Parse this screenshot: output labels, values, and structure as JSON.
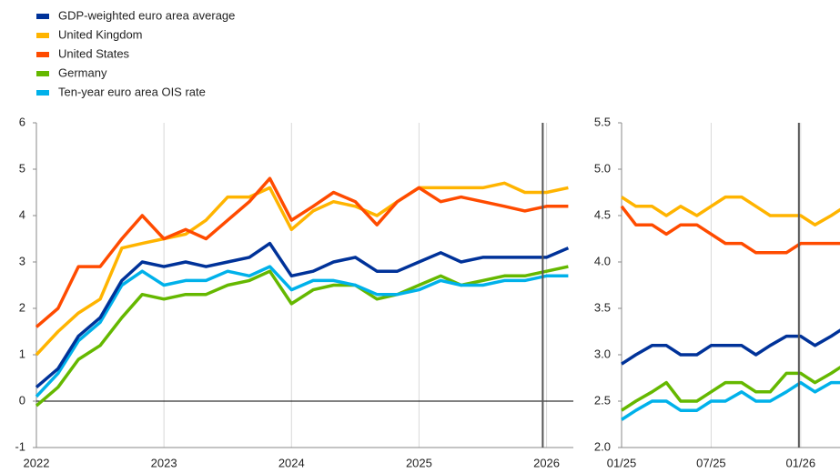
{
  "chart_data": [
    {
      "type": "line",
      "x": [
        2022,
        2022.17,
        2022.33,
        2022.5,
        2022.67,
        2022.83,
        2023,
        2023.17,
        2023.33,
        2023.5,
        2023.67,
        2023.83,
        2024,
        2024.17,
        2024.33,
        2024.5,
        2024.67,
        2024.83,
        2025,
        2025.17,
        2025.33,
        2025.5,
        2025.67,
        2025.83,
        2026,
        2026.17
      ],
      "series": [
        {
          "name": "GDP-weighted euro area average",
          "color": "#003299",
          "values": [
            0.3,
            0.7,
            1.4,
            1.8,
            2.6,
            3.0,
            2.9,
            3.0,
            2.9,
            3.0,
            3.1,
            3.4,
            2.7,
            2.8,
            3.0,
            3.1,
            2.8,
            2.8,
            3.0,
            3.2,
            3.0,
            3.1,
            3.1,
            3.1,
            3.1,
            3.3
          ]
        },
        {
          "name": "United Kingdom",
          "color": "#ffb400",
          "values": [
            1.0,
            1.5,
            1.9,
            2.2,
            3.3,
            3.4,
            3.5,
            3.6,
            3.9,
            4.4,
            4.4,
            4.6,
            3.7,
            4.1,
            4.3,
            4.2,
            4.0,
            4.3,
            4.6,
            4.6,
            4.6,
            4.6,
            4.7,
            4.5,
            4.5,
            4.6
          ]
        },
        {
          "name": "United States",
          "color": "#ff4b00",
          "values": [
            1.6,
            2.0,
            2.9,
            2.9,
            3.5,
            4.0,
            3.5,
            3.7,
            3.5,
            3.9,
            4.3,
            4.8,
            3.9,
            4.2,
            4.5,
            4.3,
            3.8,
            4.3,
            4.6,
            4.3,
            4.4,
            4.3,
            4.2,
            4.1,
            4.2,
            4.2
          ]
        },
        {
          "name": "Germany",
          "color": "#65b800",
          "values": [
            -0.1,
            0.3,
            0.9,
            1.2,
            1.8,
            2.3,
            2.2,
            2.3,
            2.3,
            2.5,
            2.6,
            2.8,
            2.1,
            2.4,
            2.5,
            2.5,
            2.2,
            2.3,
            2.5,
            2.7,
            2.5,
            2.6,
            2.7,
            2.7,
            2.8,
            2.9
          ]
        },
        {
          "name": "Ten-year euro area OIS rate",
          "color": "#00b1ea",
          "values": [
            0.1,
            0.6,
            1.3,
            1.7,
            2.5,
            2.8,
            2.5,
            2.6,
            2.6,
            2.8,
            2.7,
            2.9,
            2.4,
            2.6,
            2.6,
            2.5,
            2.3,
            2.3,
            2.4,
            2.6,
            2.5,
            2.5,
            2.6,
            2.6,
            2.7,
            2.7
          ]
        }
      ],
      "xlim": [
        2022,
        2026.21
      ],
      "xticks": [
        2022,
        2023,
        2024,
        2025,
        2026
      ],
      "ylim": [
        -1,
        6
      ],
      "yticks": [
        -1,
        0,
        1,
        2,
        3,
        4,
        5,
        6
      ],
      "vline": 2025.97,
      "zero_line": true,
      "grid": "x"
    },
    {
      "type": "line",
      "x": [
        2025,
        2025.08,
        2025.17,
        2025.25,
        2025.33,
        2025.42,
        2025.5,
        2025.58,
        2025.67,
        2025.75,
        2025.83,
        2025.92,
        2026,
        2026.08,
        2026.17,
        2026.25
      ],
      "series": [
        {
          "color": "#003299",
          "values": [
            2.9,
            3.0,
            3.1,
            3.1,
            3.0,
            3.0,
            3.1,
            3.1,
            3.1,
            3.0,
            3.1,
            3.2,
            3.2,
            3.1,
            3.2,
            3.3
          ]
        },
        {
          "color": "#ffb400",
          "values": [
            4.7,
            4.6,
            4.6,
            4.5,
            4.6,
            4.5,
            4.6,
            4.7,
            4.7,
            4.6,
            4.5,
            4.5,
            4.5,
            4.4,
            4.5,
            4.6
          ]
        },
        {
          "color": "#ff4b00",
          "values": [
            4.6,
            4.4,
            4.4,
            4.3,
            4.4,
            4.4,
            4.3,
            4.2,
            4.2,
            4.1,
            4.1,
            4.1,
            4.2,
            4.2,
            4.2,
            4.2
          ]
        },
        {
          "color": "#65b800",
          "values": [
            2.4,
            2.5,
            2.6,
            2.7,
            2.5,
            2.5,
            2.6,
            2.7,
            2.7,
            2.6,
            2.6,
            2.8,
            2.8,
            2.7,
            2.8,
            2.9
          ]
        },
        {
          "color": "#00b1ea",
          "values": [
            2.3,
            2.4,
            2.5,
            2.5,
            2.4,
            2.4,
            2.5,
            2.5,
            2.6,
            2.5,
            2.5,
            2.6,
            2.7,
            2.6,
            2.7,
            2.7
          ]
        }
      ],
      "xlim": [
        2025,
        2026.25
      ],
      "xticks": [
        {
          "value": 2025,
          "label": "01/25"
        },
        {
          "value": 2025.5,
          "label": "07/25"
        },
        {
          "value": 2026,
          "label": "01/26"
        }
      ],
      "ylim": [
        2.0,
        5.5
      ],
      "yticks": [
        {
          "value": 2.0,
          "label": "2.0"
        },
        2.5,
        {
          "value": 3.0,
          "label": "3.0"
        },
        3.5,
        {
          "value": 4.0,
          "label": "4.0"
        },
        4.5,
        {
          "value": 5.0,
          "label": "5.0"
        },
        5.5
      ],
      "vline": 2025.99,
      "grid": "x"
    }
  ]
}
